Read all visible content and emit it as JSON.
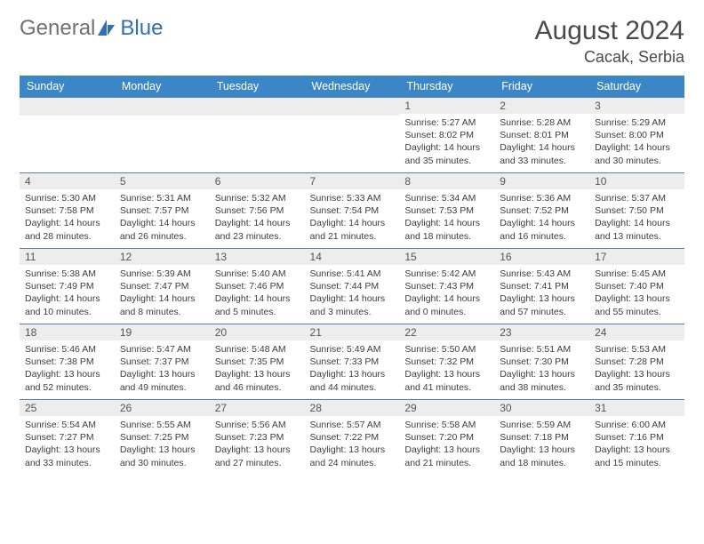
{
  "brand": {
    "word1": "General",
    "word2": "Blue",
    "logo_color": "#2f6fb5"
  },
  "title": "August 2024",
  "location": "Cacak, Serbia",
  "colors": {
    "header_bg": "#3b86c7",
    "header_text": "#ffffff",
    "daynum_bg": "#ededed",
    "cell_border": "#5a7ea3",
    "text": "#3c3c3c",
    "title_text": "#4a4a4a"
  },
  "weekdays": [
    "Sunday",
    "Monday",
    "Tuesday",
    "Wednesday",
    "Thursday",
    "Friday",
    "Saturday"
  ],
  "weeks": [
    [
      {
        "n": "",
        "sr": "",
        "ss": "",
        "dl": ""
      },
      {
        "n": "",
        "sr": "",
        "ss": "",
        "dl": ""
      },
      {
        "n": "",
        "sr": "",
        "ss": "",
        "dl": ""
      },
      {
        "n": "",
        "sr": "",
        "ss": "",
        "dl": ""
      },
      {
        "n": "1",
        "sr": "Sunrise: 5:27 AM",
        "ss": "Sunset: 8:02 PM",
        "dl": "Daylight: 14 hours and 35 minutes."
      },
      {
        "n": "2",
        "sr": "Sunrise: 5:28 AM",
        "ss": "Sunset: 8:01 PM",
        "dl": "Daylight: 14 hours and 33 minutes."
      },
      {
        "n": "3",
        "sr": "Sunrise: 5:29 AM",
        "ss": "Sunset: 8:00 PM",
        "dl": "Daylight: 14 hours and 30 minutes."
      }
    ],
    [
      {
        "n": "4",
        "sr": "Sunrise: 5:30 AM",
        "ss": "Sunset: 7:58 PM",
        "dl": "Daylight: 14 hours and 28 minutes."
      },
      {
        "n": "5",
        "sr": "Sunrise: 5:31 AM",
        "ss": "Sunset: 7:57 PM",
        "dl": "Daylight: 14 hours and 26 minutes."
      },
      {
        "n": "6",
        "sr": "Sunrise: 5:32 AM",
        "ss": "Sunset: 7:56 PM",
        "dl": "Daylight: 14 hours and 23 minutes."
      },
      {
        "n": "7",
        "sr": "Sunrise: 5:33 AM",
        "ss": "Sunset: 7:54 PM",
        "dl": "Daylight: 14 hours and 21 minutes."
      },
      {
        "n": "8",
        "sr": "Sunrise: 5:34 AM",
        "ss": "Sunset: 7:53 PM",
        "dl": "Daylight: 14 hours and 18 minutes."
      },
      {
        "n": "9",
        "sr": "Sunrise: 5:36 AM",
        "ss": "Sunset: 7:52 PM",
        "dl": "Daylight: 14 hours and 16 minutes."
      },
      {
        "n": "10",
        "sr": "Sunrise: 5:37 AM",
        "ss": "Sunset: 7:50 PM",
        "dl": "Daylight: 14 hours and 13 minutes."
      }
    ],
    [
      {
        "n": "11",
        "sr": "Sunrise: 5:38 AM",
        "ss": "Sunset: 7:49 PM",
        "dl": "Daylight: 14 hours and 10 minutes."
      },
      {
        "n": "12",
        "sr": "Sunrise: 5:39 AM",
        "ss": "Sunset: 7:47 PM",
        "dl": "Daylight: 14 hours and 8 minutes."
      },
      {
        "n": "13",
        "sr": "Sunrise: 5:40 AM",
        "ss": "Sunset: 7:46 PM",
        "dl": "Daylight: 14 hours and 5 minutes."
      },
      {
        "n": "14",
        "sr": "Sunrise: 5:41 AM",
        "ss": "Sunset: 7:44 PM",
        "dl": "Daylight: 14 hours and 3 minutes."
      },
      {
        "n": "15",
        "sr": "Sunrise: 5:42 AM",
        "ss": "Sunset: 7:43 PM",
        "dl": "Daylight: 14 hours and 0 minutes."
      },
      {
        "n": "16",
        "sr": "Sunrise: 5:43 AM",
        "ss": "Sunset: 7:41 PM",
        "dl": "Daylight: 13 hours and 57 minutes."
      },
      {
        "n": "17",
        "sr": "Sunrise: 5:45 AM",
        "ss": "Sunset: 7:40 PM",
        "dl": "Daylight: 13 hours and 55 minutes."
      }
    ],
    [
      {
        "n": "18",
        "sr": "Sunrise: 5:46 AM",
        "ss": "Sunset: 7:38 PM",
        "dl": "Daylight: 13 hours and 52 minutes."
      },
      {
        "n": "19",
        "sr": "Sunrise: 5:47 AM",
        "ss": "Sunset: 7:37 PM",
        "dl": "Daylight: 13 hours and 49 minutes."
      },
      {
        "n": "20",
        "sr": "Sunrise: 5:48 AM",
        "ss": "Sunset: 7:35 PM",
        "dl": "Daylight: 13 hours and 46 minutes."
      },
      {
        "n": "21",
        "sr": "Sunrise: 5:49 AM",
        "ss": "Sunset: 7:33 PM",
        "dl": "Daylight: 13 hours and 44 minutes."
      },
      {
        "n": "22",
        "sr": "Sunrise: 5:50 AM",
        "ss": "Sunset: 7:32 PM",
        "dl": "Daylight: 13 hours and 41 minutes."
      },
      {
        "n": "23",
        "sr": "Sunrise: 5:51 AM",
        "ss": "Sunset: 7:30 PM",
        "dl": "Daylight: 13 hours and 38 minutes."
      },
      {
        "n": "24",
        "sr": "Sunrise: 5:53 AM",
        "ss": "Sunset: 7:28 PM",
        "dl": "Daylight: 13 hours and 35 minutes."
      }
    ],
    [
      {
        "n": "25",
        "sr": "Sunrise: 5:54 AM",
        "ss": "Sunset: 7:27 PM",
        "dl": "Daylight: 13 hours and 33 minutes."
      },
      {
        "n": "26",
        "sr": "Sunrise: 5:55 AM",
        "ss": "Sunset: 7:25 PM",
        "dl": "Daylight: 13 hours and 30 minutes."
      },
      {
        "n": "27",
        "sr": "Sunrise: 5:56 AM",
        "ss": "Sunset: 7:23 PM",
        "dl": "Daylight: 13 hours and 27 minutes."
      },
      {
        "n": "28",
        "sr": "Sunrise: 5:57 AM",
        "ss": "Sunset: 7:22 PM",
        "dl": "Daylight: 13 hours and 24 minutes."
      },
      {
        "n": "29",
        "sr": "Sunrise: 5:58 AM",
        "ss": "Sunset: 7:20 PM",
        "dl": "Daylight: 13 hours and 21 minutes."
      },
      {
        "n": "30",
        "sr": "Sunrise: 5:59 AM",
        "ss": "Sunset: 7:18 PM",
        "dl": "Daylight: 13 hours and 18 minutes."
      },
      {
        "n": "31",
        "sr": "Sunrise: 6:00 AM",
        "ss": "Sunset: 7:16 PM",
        "dl": "Daylight: 13 hours and 15 minutes."
      }
    ]
  ]
}
